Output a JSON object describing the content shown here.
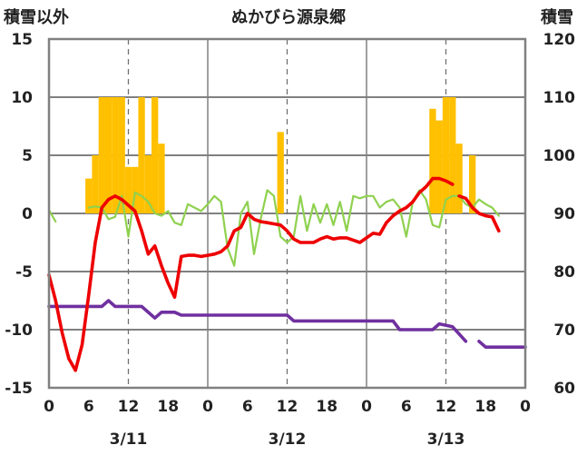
{
  "chart_data": {
    "type": "line",
    "title": "ぬかびら源泉郷",
    "left_axis_label": "積雪以外",
    "right_axis_label": "積雪",
    "y_left": {
      "min": -15,
      "max": 15,
      "ticks": [
        "15",
        "10",
        "5",
        "0",
        "-5",
        "-10",
        "-15"
      ],
      "tick_values": [
        15,
        10,
        5,
        0,
        -5,
        -10,
        -15
      ]
    },
    "y_right": {
      "min": 60,
      "max": 120,
      "ticks": [
        "120",
        "110",
        "100",
        "90",
        "80",
        "70",
        "60"
      ],
      "tick_values": [
        120,
        110,
        100,
        90,
        80,
        70,
        60
      ]
    },
    "x": {
      "min": 0,
      "max": 72,
      "ticks": [
        "0",
        "6",
        "12",
        "18",
        "0",
        "6",
        "12",
        "18",
        "0",
        "6",
        "12",
        "18",
        "0"
      ],
      "tick_values": [
        0,
        6,
        12,
        18,
        24,
        30,
        36,
        42,
        48,
        54,
        60,
        66,
        72
      ]
    },
    "dates": [
      {
        "label": "3/11",
        "hour": 12
      },
      {
        "label": "3/12",
        "hour": 36
      },
      {
        "label": "3/13",
        "hour": 60
      }
    ],
    "day_boundaries": [
      24,
      48
    ],
    "dashed_hours": [
      12,
      36,
      60
    ],
    "grid": true,
    "colors": {
      "temperature": "#ee0000",
      "wind": "#8fd14f",
      "snow_depth": "#7030a0",
      "snowfall": "#ffc000"
    },
    "series": [
      {
        "key": "snowfall",
        "type": "bar",
        "axis": "left",
        "points": [
          [
            6,
            3
          ],
          [
            7,
            5
          ],
          [
            8,
            10
          ],
          [
            9,
            10
          ],
          [
            10,
            10
          ],
          [
            11,
            10
          ],
          [
            12,
            4
          ],
          [
            13,
            4
          ],
          [
            14,
            10
          ],
          [
            15,
            5
          ],
          [
            16,
            10
          ],
          [
            17,
            6
          ],
          [
            35,
            7
          ],
          [
            58,
            9
          ],
          [
            59,
            8
          ],
          [
            60,
            10
          ],
          [
            61,
            10
          ],
          [
            62,
            6
          ],
          [
            64,
            5
          ]
        ]
      },
      {
        "key": "temperature",
        "type": "line",
        "axis": "left",
        "segments": [
          [
            [
              0,
              -5.3
            ],
            [
              1,
              -7.5
            ],
            [
              2,
              -10.3
            ],
            [
              3,
              -12.5
            ],
            [
              4,
              -13.5
            ],
            [
              5,
              -11.3
            ],
            [
              6,
              -7
            ],
            [
              7,
              -2.5
            ],
            [
              8,
              0.5
            ],
            [
              9,
              1.2
            ],
            [
              10,
              1.5
            ],
            [
              11,
              1.2
            ],
            [
              12,
              0.7
            ],
            [
              13,
              0.2
            ],
            [
              14,
              -1.5
            ],
            [
              15,
              -3.5
            ],
            [
              16,
              -2.8
            ],
            [
              17,
              -4.5
            ],
            [
              18,
              -6
            ],
            [
              19,
              -7.2
            ],
            [
              20,
              -3.7
            ],
            [
              21,
              -3.6
            ],
            [
              22,
              -3.6
            ],
            [
              23,
              -3.7
            ],
            [
              24,
              -3.6
            ],
            [
              25,
              -3.5
            ],
            [
              26,
              -3.3
            ],
            [
              27,
              -2.8
            ],
            [
              28,
              -1.5
            ],
            [
              29,
              -1.2
            ],
            [
              30,
              0
            ],
            [
              31,
              -0.5
            ],
            [
              32,
              -0.7
            ],
            [
              33,
              -0.8
            ],
            [
              34,
              -0.9
            ],
            [
              35,
              -1
            ],
            [
              36,
              -1.5
            ],
            [
              37,
              -2.2
            ],
            [
              38,
              -2.5
            ],
            [
              39,
              -2.5
            ],
            [
              40,
              -2.5
            ],
            [
              41,
              -2.2
            ],
            [
              42,
              -2
            ],
            [
              43,
              -2.2
            ],
            [
              44,
              -2.1
            ],
            [
              45,
              -2.1
            ],
            [
              46,
              -2.3
            ],
            [
              47,
              -2.5
            ],
            [
              48,
              -2.1
            ],
            [
              49,
              -1.7
            ],
            [
              50,
              -1.8
            ],
            [
              51,
              -0.8
            ],
            [
              52,
              -0.2
            ],
            [
              53,
              0.2
            ],
            [
              54,
              0.5
            ],
            [
              55,
              1
            ],
            [
              56,
              1.8
            ],
            [
              57,
              2.3
            ],
            [
              58,
              3
            ],
            [
              59,
              3
            ],
            [
              60,
              2.8
            ],
            [
              61,
              2.5
            ]
          ],
          [
            [
              62,
              1.5
            ],
            [
              63,
              1.3
            ],
            [
              64,
              0.5
            ],
            [
              65,
              0
            ],
            [
              66,
              -0.2
            ],
            [
              67,
              -0.3
            ],
            [
              68,
              -1.5
            ]
          ]
        ]
      },
      {
        "key": "wind",
        "type": "line",
        "axis": "left",
        "segments": [
          [
            [
              0,
              0.3
            ],
            [
              1,
              -0.7
            ]
          ],
          [
            [
              6,
              0.5
            ],
            [
              7,
              0.6
            ],
            [
              8,
              0.5
            ],
            [
              9,
              -0.5
            ],
            [
              10,
              -0.3
            ],
            [
              11,
              1.5
            ],
            [
              12,
              -2
            ],
            [
              13,
              1.8
            ],
            [
              14,
              1.5
            ],
            [
              15,
              1
            ],
            [
              16,
              0
            ],
            [
              17,
              -0.2
            ],
            [
              18,
              0.2
            ],
            [
              19,
              -0.8
            ],
            [
              20,
              -1
            ],
            [
              21,
              0.8
            ],
            [
              22,
              0.5
            ],
            [
              23,
              0.2
            ],
            [
              24,
              0.8
            ],
            [
              25,
              1.5
            ],
            [
              26,
              1
            ],
            [
              27,
              -3
            ],
            [
              28,
              -4.5
            ],
            [
              29,
              0
            ],
            [
              30,
              1
            ],
            [
              31,
              -3.5
            ],
            [
              32,
              -0.5
            ],
            [
              33,
              2
            ],
            [
              34,
              1.5
            ],
            [
              35,
              -2
            ],
            [
              36,
              -2.5
            ],
            [
              37,
              -2
            ],
            [
              38,
              1.5
            ],
            [
              39,
              -1.5
            ],
            [
              40,
              0.8
            ],
            [
              41,
              -0.8
            ],
            [
              42,
              0.8
            ],
            [
              43,
              -1
            ],
            [
              44,
              1
            ],
            [
              45,
              -1.5
            ],
            [
              46,
              1.5
            ],
            [
              47,
              1.3
            ],
            [
              48,
              1.5
            ],
            [
              49,
              1.5
            ],
            [
              50,
              0.5
            ],
            [
              51,
              1
            ],
            [
              52,
              1.2
            ],
            [
              53,
              0.5
            ],
            [
              54,
              -2
            ],
            [
              55,
              1
            ],
            [
              56,
              2
            ],
            [
              57,
              1.2
            ],
            [
              58,
              -1
            ],
            [
              59,
              -1.2
            ],
            [
              60,
              1.2
            ],
            [
              61,
              1.5
            ],
            [
              62,
              1.5
            ],
            [
              63,
              0.8
            ],
            [
              64,
              0.5
            ],
            [
              65,
              1.2
            ],
            [
              66,
              0.8
            ],
            [
              67,
              0.5
            ],
            [
              68,
              -0.2
            ]
          ]
        ]
      },
      {
        "key": "snow_depth",
        "type": "line",
        "axis": "right",
        "segments": [
          [
            [
              0,
              74
            ],
            [
              6,
              74
            ],
            [
              8,
              74
            ],
            [
              9,
              75
            ],
            [
              10,
              74
            ],
            [
              14,
              74
            ],
            [
              16,
              72
            ],
            [
              17,
              73
            ],
            [
              19,
              73
            ],
            [
              20,
              72.5
            ],
            [
              36,
              72.5
            ],
            [
              37,
              71.5
            ],
            [
              47,
              71.5
            ],
            [
              48,
              71.5
            ],
            [
              52,
              71.5
            ],
            [
              53,
              70
            ],
            [
              58,
              70
            ],
            [
              59,
              71
            ],
            [
              61,
              70.5
            ],
            [
              63,
              68
            ]
          ],
          [
            [
              65,
              68
            ],
            [
              66,
              67
            ],
            [
              72,
              67
            ]
          ]
        ]
      }
    ]
  }
}
